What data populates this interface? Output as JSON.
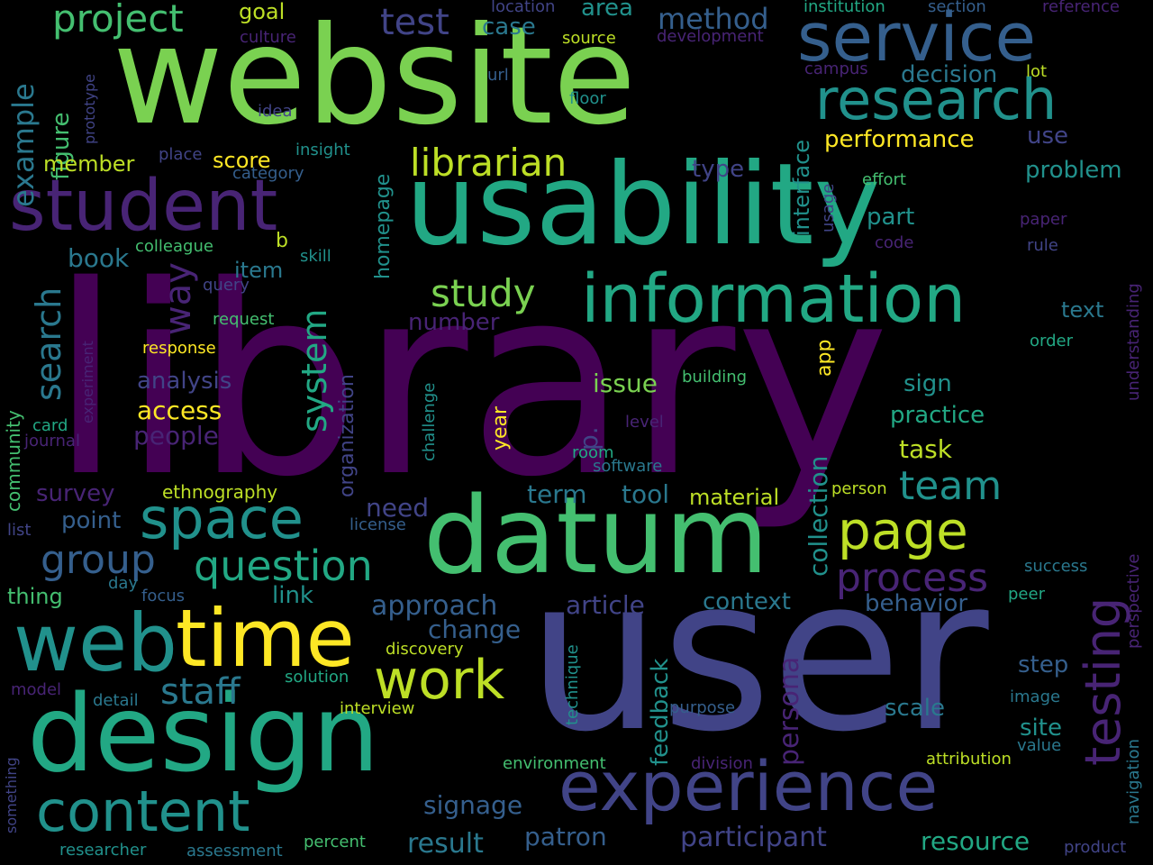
{
  "palette": {
    "background": "#000000",
    "d_purple": "#440154",
    "purple": "#482475",
    "indigo": "#414487",
    "blue": "#355f8d",
    "teal_blue": "#2a788e",
    "teal": "#21918c",
    "green_teal": "#22a884",
    "green": "#44bf70",
    "light_green": "#7ad151",
    "yellow_green": "#bddf26",
    "yellow": "#fde725"
  },
  "words": [
    {
      "text": "library",
      "color": "d_purple"
    },
    {
      "text": "user",
      "color": "indigo"
    },
    {
      "text": "website",
      "color": "light_green"
    },
    {
      "text": "usability",
      "color": "green_teal"
    },
    {
      "text": "datum",
      "color": "green"
    },
    {
      "text": "design",
      "color": "green_teal"
    },
    {
      "text": "information",
      "color": "green_teal"
    },
    {
      "text": "student",
      "color": "purple"
    },
    {
      "text": "service",
      "color": "blue"
    },
    {
      "text": "web",
      "color": "teal"
    },
    {
      "text": "time",
      "color": "yellow"
    },
    {
      "text": "experience",
      "color": "indigo"
    },
    {
      "text": "content",
      "color": "teal"
    },
    {
      "text": "research",
      "color": "teal"
    },
    {
      "text": "space",
      "color": "teal"
    },
    {
      "text": "page",
      "color": "yellow_green"
    },
    {
      "text": "testing",
      "color": "purple"
    },
    {
      "text": "question",
      "color": "green_teal"
    },
    {
      "text": "work",
      "color": "yellow_green"
    },
    {
      "text": "librarian",
      "color": "yellow_green"
    },
    {
      "text": "study",
      "color": "light_green"
    },
    {
      "text": "project",
      "color": "green"
    },
    {
      "text": "process",
      "color": "purple"
    },
    {
      "text": "group",
      "color": "blue"
    },
    {
      "text": "staff",
      "color": "teal_blue"
    },
    {
      "text": "test",
      "color": "indigo"
    },
    {
      "text": "team",
      "color": "teal"
    },
    {
      "text": "system",
      "color": "green_teal"
    },
    {
      "text": "search",
      "color": "teal_blue"
    },
    {
      "text": "example",
      "color": "teal_blue"
    },
    {
      "text": "method",
      "color": "blue"
    },
    {
      "text": "performance",
      "color": "yellow"
    },
    {
      "text": "participant",
      "color": "indigo"
    },
    {
      "text": "resource",
      "color": "green_teal"
    },
    {
      "text": "result",
      "color": "teal_blue"
    },
    {
      "text": "patron",
      "color": "blue"
    },
    {
      "text": "signage",
      "color": "blue"
    },
    {
      "text": "approach",
      "color": "blue"
    },
    {
      "text": "article",
      "color": "indigo"
    },
    {
      "text": "change",
      "color": "blue"
    },
    {
      "text": "persona",
      "color": "purple"
    },
    {
      "text": "feedback",
      "color": "teal"
    },
    {
      "text": "collection",
      "color": "teal"
    },
    {
      "text": "interface",
      "color": "teal"
    },
    {
      "text": "decision",
      "color": "teal_blue"
    },
    {
      "text": "problem",
      "color": "teal"
    },
    {
      "text": "way",
      "color": "purple"
    },
    {
      "text": "figure",
      "color": "green"
    },
    {
      "text": "issue",
      "color": "light_green"
    },
    {
      "text": "access",
      "color": "yellow"
    },
    {
      "text": "number",
      "color": "purple"
    },
    {
      "text": "material",
      "color": "yellow_green"
    },
    {
      "text": "behavior",
      "color": "blue"
    },
    {
      "text": "context",
      "color": "teal_blue"
    },
    {
      "text": "need",
      "color": "indigo"
    },
    {
      "text": "term",
      "color": "teal_blue"
    },
    {
      "text": "tool",
      "color": "teal_blue"
    },
    {
      "text": "survey",
      "color": "purple"
    },
    {
      "text": "point",
      "color": "blue"
    },
    {
      "text": "link",
      "color": "teal"
    },
    {
      "text": "people",
      "color": "purple"
    },
    {
      "text": "analysis",
      "color": "indigo"
    },
    {
      "text": "book",
      "color": "teal_blue"
    },
    {
      "text": "item",
      "color": "teal_blue"
    },
    {
      "text": "member",
      "color": "yellow_green"
    },
    {
      "text": "score",
      "color": "yellow"
    },
    {
      "text": "goal",
      "color": "yellow_green"
    },
    {
      "text": "case",
      "color": "teal_blue"
    },
    {
      "text": "area",
      "color": "teal"
    },
    {
      "text": "type",
      "color": "indigo"
    },
    {
      "text": "use",
      "color": "indigo"
    },
    {
      "text": "part",
      "color": "teal"
    },
    {
      "text": "practice",
      "color": "green_teal"
    },
    {
      "text": "task",
      "color": "yellow_green"
    },
    {
      "text": "sign",
      "color": "teal"
    },
    {
      "text": "text",
      "color": "teal_blue"
    },
    {
      "text": "step",
      "color": "blue"
    },
    {
      "text": "scale",
      "color": "teal_blue"
    },
    {
      "text": "site",
      "color": "teal"
    },
    {
      "text": "homepage",
      "color": "teal"
    },
    {
      "text": "organization",
      "color": "indigo"
    },
    {
      "text": "year",
      "color": "yellow"
    },
    {
      "text": "app",
      "color": "yellow"
    },
    {
      "text": "p.",
      "color": "indigo"
    },
    {
      "text": "thing",
      "color": "green"
    },
    {
      "text": "community",
      "color": "green"
    },
    {
      "text": "ethnography",
      "color": "yellow_green"
    },
    {
      "text": "response",
      "color": "yellow"
    },
    {
      "text": "request",
      "color": "green"
    },
    {
      "text": "colleague",
      "color": "green"
    },
    {
      "text": "skill",
      "color": "teal"
    },
    {
      "text": "query",
      "color": "indigo"
    },
    {
      "text": "b",
      "color": "yellow_green"
    },
    {
      "text": "insight",
      "color": "teal"
    },
    {
      "text": "category",
      "color": "blue"
    },
    {
      "text": "place",
      "color": "indigo"
    },
    {
      "text": "idea",
      "color": "indigo"
    },
    {
      "text": "url",
      "color": "blue"
    },
    {
      "text": "floor",
      "color": "teal"
    },
    {
      "text": "source",
      "color": "yellow_green"
    },
    {
      "text": "culture",
      "color": "purple"
    },
    {
      "text": "location",
      "color": "indigo"
    },
    {
      "text": "development",
      "color": "purple"
    },
    {
      "text": "campus",
      "color": "purple"
    },
    {
      "text": "institution",
      "color": "green_teal"
    },
    {
      "text": "section",
      "color": "blue"
    },
    {
      "text": "reference",
      "color": "purple"
    },
    {
      "text": "lot",
      "color": "yellow_green"
    },
    {
      "text": "effort",
      "color": "green"
    },
    {
      "text": "paper",
      "color": "purple"
    },
    {
      "text": "rule",
      "color": "indigo"
    },
    {
      "text": "code",
      "color": "purple"
    },
    {
      "text": "usage",
      "color": "indigo"
    },
    {
      "text": "order",
      "color": "green_teal"
    },
    {
      "text": "understanding",
      "color": "purple"
    },
    {
      "text": "building",
      "color": "green"
    },
    {
      "text": "level",
      "color": "purple"
    },
    {
      "text": "challenge",
      "color": "teal"
    },
    {
      "text": "room",
      "color": "green_teal"
    },
    {
      "text": "software",
      "color": "teal_blue"
    },
    {
      "text": "person",
      "color": "yellow_green"
    },
    {
      "text": "license",
      "color": "blue"
    },
    {
      "text": "day",
      "color": "teal_blue"
    },
    {
      "text": "focus",
      "color": "blue"
    },
    {
      "text": "discovery",
      "color": "yellow_green"
    },
    {
      "text": "solution",
      "color": "green_teal"
    },
    {
      "text": "interview",
      "color": "yellow_green"
    },
    {
      "text": "model",
      "color": "purple"
    },
    {
      "text": "detail",
      "color": "teal_blue"
    },
    {
      "text": "technique",
      "color": "teal"
    },
    {
      "text": "purpose",
      "color": "blue"
    },
    {
      "text": "division",
      "color": "purple"
    },
    {
      "text": "environment",
      "color": "green"
    },
    {
      "text": "image",
      "color": "teal_blue"
    },
    {
      "text": "value",
      "color": "teal_blue"
    },
    {
      "text": "attribution",
      "color": "yellow_green"
    },
    {
      "text": "navigation",
      "color": "teal_blue"
    },
    {
      "text": "perspective",
      "color": "purple"
    },
    {
      "text": "success",
      "color": "teal_blue"
    },
    {
      "text": "peer",
      "color": "green_teal"
    },
    {
      "text": "product",
      "color": "indigo"
    },
    {
      "text": "something",
      "color": "indigo"
    },
    {
      "text": "researcher",
      "color": "teal"
    },
    {
      "text": "assessment",
      "color": "teal_blue"
    },
    {
      "text": "percent",
      "color": "green"
    },
    {
      "text": "experiment",
      "color": "purple"
    },
    {
      "text": "journal",
      "color": "purple"
    },
    {
      "text": "card",
      "color": "green_teal"
    },
    {
      "text": "list",
      "color": "indigo"
    },
    {
      "text": "prototype",
      "color": "indigo"
    }
  ]
}
